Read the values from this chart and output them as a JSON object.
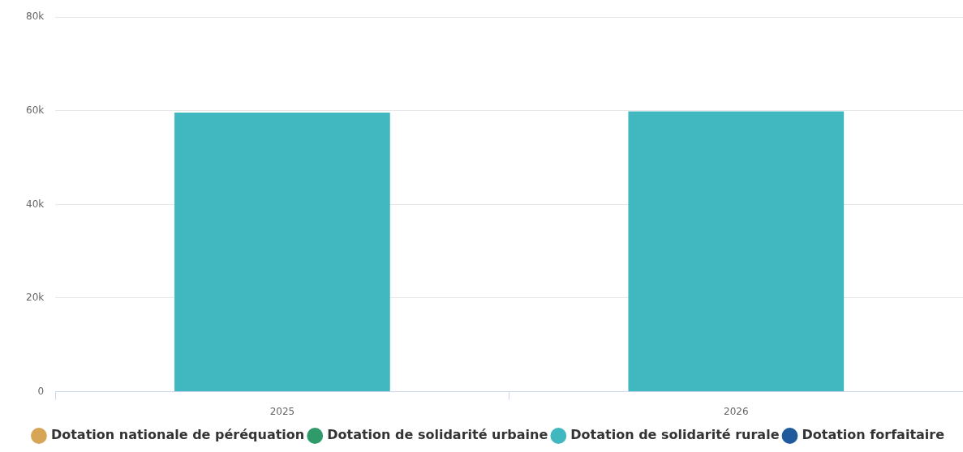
{
  "chart_data": {
    "type": "bar",
    "stacked": true,
    "categories": [
      "2025",
      "2026"
    ],
    "series": [
      {
        "name": "Dotation nationale de péréquation",
        "color": "#d6a556",
        "values": [
          0,
          0
        ]
      },
      {
        "name": "Dotation de solidarité urbaine",
        "color": "#2f9b6b",
        "values": [
          0,
          0
        ]
      },
      {
        "name": "Dotation de solidarité rurale",
        "color": "#41b8c0",
        "values": [
          59600,
          59900
        ]
      },
      {
        "name": "Dotation forfaitaire",
        "color": "#1f5a9c",
        "values": [
          0,
          0
        ]
      }
    ],
    "ylim": [
      0,
      80000
    ],
    "yticks": [
      0,
      {
        "value": 20000,
        "label": "20k"
      },
      {
        "value": 40000,
        "label": "40k"
      },
      {
        "value": 60000,
        "label": "60k"
      },
      {
        "value": 80000,
        "label": "80k"
      }
    ],
    "grid": "y",
    "legend": "bottom"
  }
}
